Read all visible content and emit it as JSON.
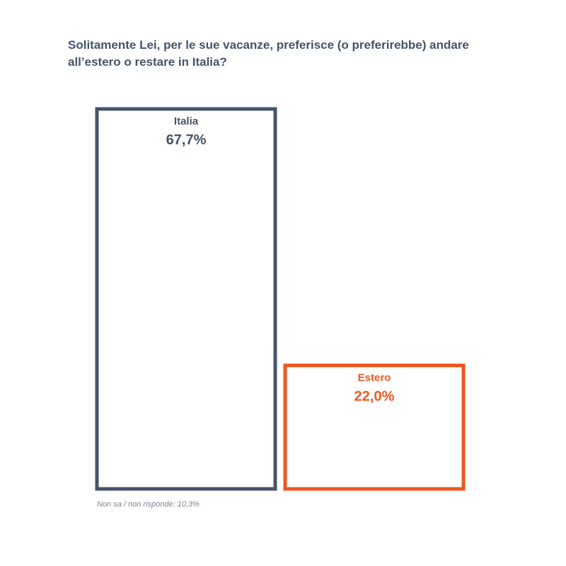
{
  "colors": {
    "title": "#46546b",
    "note": "#7a8494"
  },
  "chart_data": {
    "type": "bar",
    "title": "Solitamente Lei, per le sue vacanze, preferisce (o preferirebbe) andare all’estero o restare in Italia?",
    "categories": [
      "Italia",
      "Estero"
    ],
    "values": [
      67.7,
      22.0
    ],
    "value_labels": [
      "67,7%",
      "22,0%"
    ],
    "colors": [
      "#46546b",
      "#f0561f"
    ],
    "ylim": [
      0,
      67.7
    ],
    "grid": false,
    "legend": "none",
    "note": "Non sa / non risponde: 10,3%"
  }
}
